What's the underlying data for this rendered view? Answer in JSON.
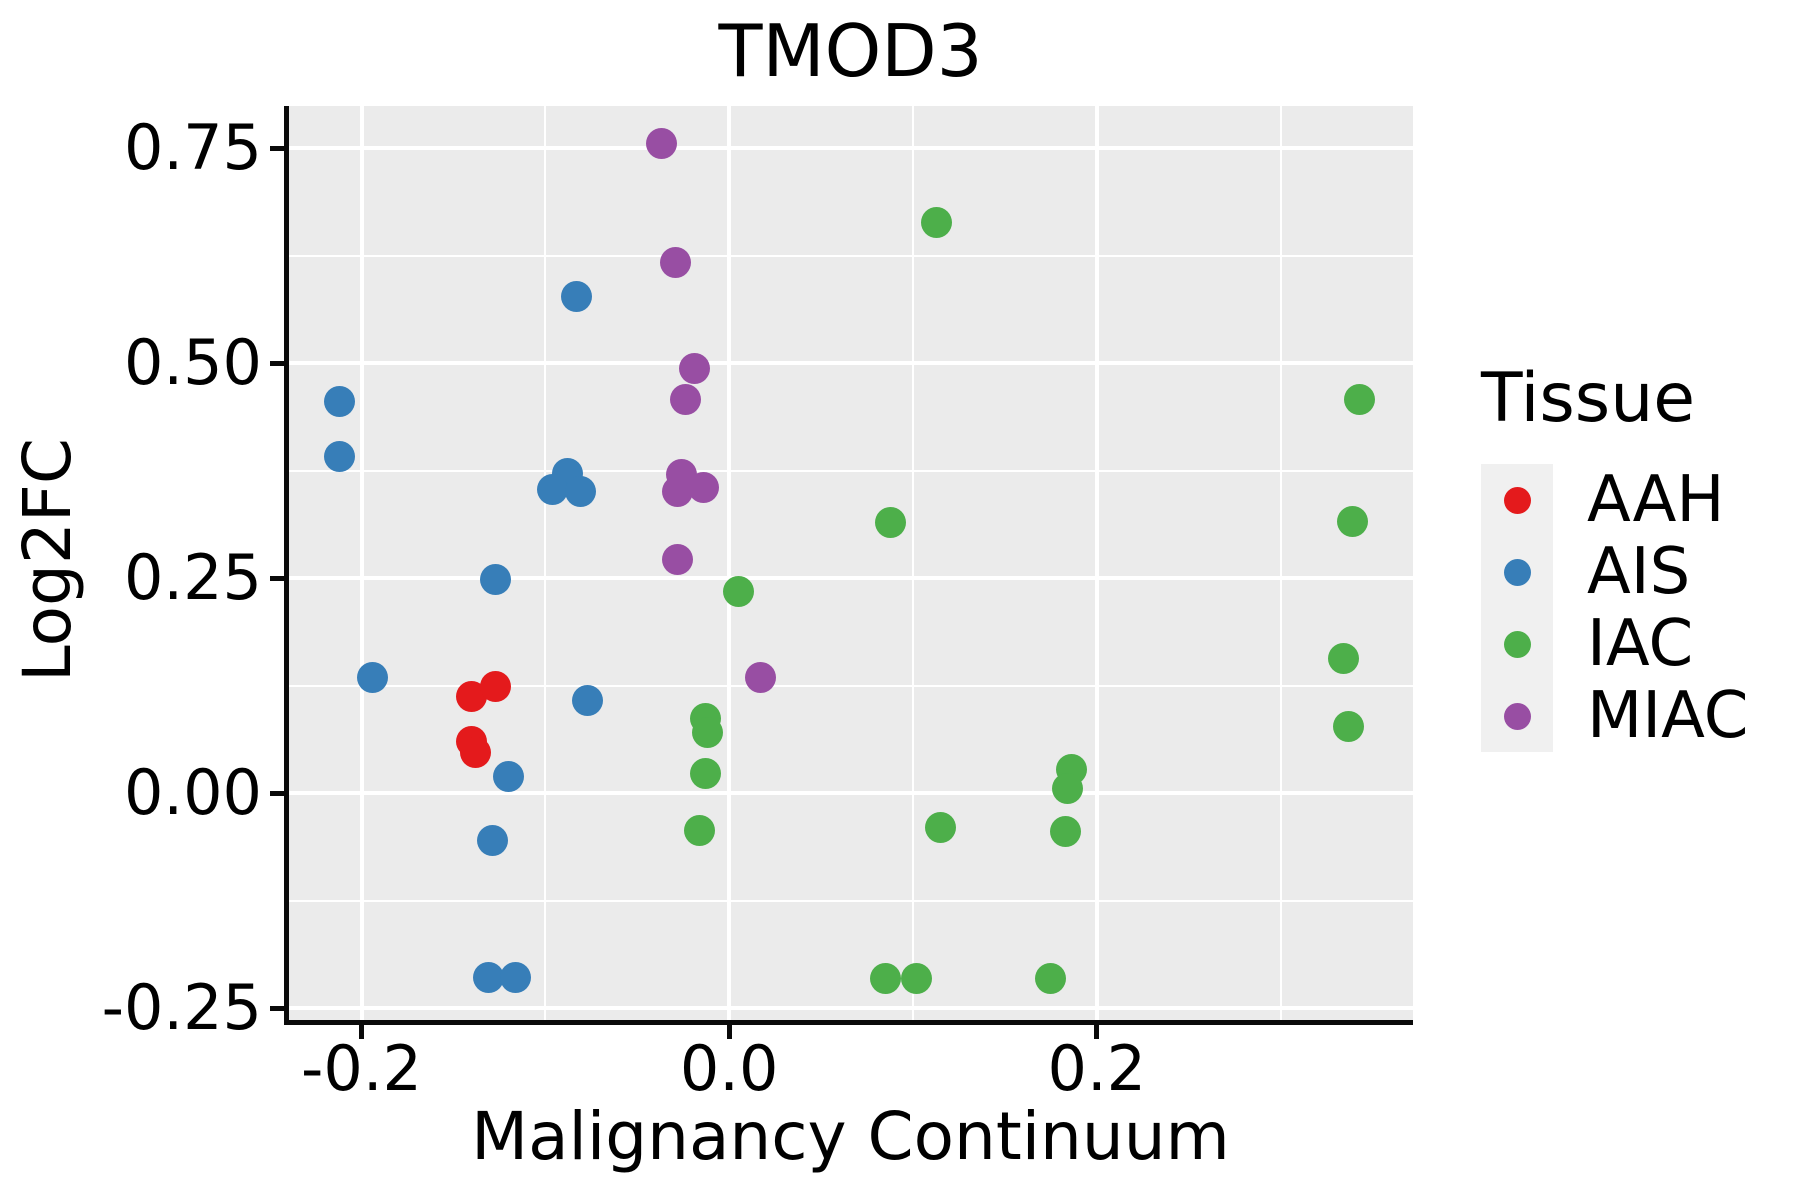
{
  "title": "TMOD3",
  "axes": {
    "x_label": "Malignancy Continuum",
    "y_label": "Log2FC"
  },
  "legend": {
    "title": "Tissue",
    "items": [
      {
        "label": "AAH",
        "color": "#e41a1c"
      },
      {
        "label": "AIS",
        "color": "#377eb8"
      },
      {
        "label": "IAC",
        "color": "#4daf4a"
      },
      {
        "label": "MIAC",
        "color": "#984ea3"
      }
    ]
  },
  "style": {
    "panel_background": "#ebebeb",
    "gridline_color": "#ffffff",
    "spine_color": "#0a0a0a",
    "legend_key_fill": "#f0f0f0"
  },
  "chart_data": {
    "type": "scatter",
    "title": "TMOD3",
    "xlabel": "Malignancy Continuum",
    "ylabel": "Log2FC",
    "xlim": [
      -0.24,
      0.372
    ],
    "ylim": [
      -0.266,
      0.799
    ],
    "grid": true,
    "legend_position": "right",
    "x_ticks": [
      {
        "value": -0.2,
        "label": "-0.2"
      },
      {
        "value": 0.0,
        "label": "0.0"
      },
      {
        "value": 0.2,
        "label": "0.2"
      }
    ],
    "y_ticks": [
      {
        "value": 0.75,
        "label": "0.75"
      },
      {
        "value": 0.5,
        "label": "0.50"
      },
      {
        "value": 0.25,
        "label": "0.25"
      },
      {
        "value": 0.0,
        "label": "0.00"
      },
      {
        "value": -0.25,
        "label": "-0.25"
      }
    ],
    "x_minor_gridlines": [
      -0.1,
      0.1,
      0.3
    ],
    "y_minor_gridlines": [
      0.625,
      0.375,
      0.125,
      -0.125
    ],
    "series": [
      {
        "name": "AAH",
        "color": "#e41a1c",
        "points": [
          [
            -0.14,
            0.112
          ],
          [
            -0.127,
            0.124
          ],
          [
            -0.14,
            0.06
          ],
          [
            -0.138,
            0.047
          ]
        ]
      },
      {
        "name": "AIS",
        "color": "#377eb8",
        "points": [
          [
            -0.212,
            0.455
          ],
          [
            -0.212,
            0.391
          ],
          [
            -0.194,
            0.134
          ],
          [
            -0.127,
            0.248
          ],
          [
            -0.12,
            0.019
          ],
          [
            -0.129,
            -0.055
          ],
          [
            -0.131,
            -0.214
          ],
          [
            -0.116,
            -0.214
          ],
          [
            -0.083,
            0.578
          ],
          [
            -0.088,
            0.372
          ],
          [
            -0.096,
            0.353
          ],
          [
            -0.081,
            0.351
          ],
          [
            -0.077,
            0.108
          ]
        ]
      },
      {
        "name": "IAC",
        "color": "#4daf4a",
        "points": [
          [
            0.005,
            0.234
          ],
          [
            -0.013,
            0.087
          ],
          [
            -0.012,
            0.071
          ],
          [
            -0.013,
            0.023
          ],
          [
            -0.016,
            -0.043
          ],
          [
            0.113,
            0.664
          ],
          [
            0.088,
            0.315
          ],
          [
            0.115,
            -0.04
          ],
          [
            0.186,
            0.027
          ],
          [
            0.184,
            0.005
          ],
          [
            0.183,
            -0.044
          ],
          [
            0.085,
            -0.216
          ],
          [
            0.102,
            -0.216
          ],
          [
            0.175,
            -0.216
          ],
          [
            0.343,
            0.458
          ],
          [
            0.339,
            0.316
          ],
          [
            0.334,
            0.157
          ],
          [
            0.337,
            0.077
          ]
        ]
      },
      {
        "name": "MIAC",
        "color": "#984ea3",
        "points": [
          [
            -0.037,
            0.755
          ],
          [
            -0.029,
            0.617
          ],
          [
            -0.019,
            0.494
          ],
          [
            -0.024,
            0.458
          ],
          [
            -0.026,
            0.37
          ],
          [
            -0.028,
            0.351
          ],
          [
            -0.014,
            0.356
          ],
          [
            -0.028,
            0.272
          ],
          [
            0.017,
            0.134
          ]
        ]
      }
    ]
  }
}
